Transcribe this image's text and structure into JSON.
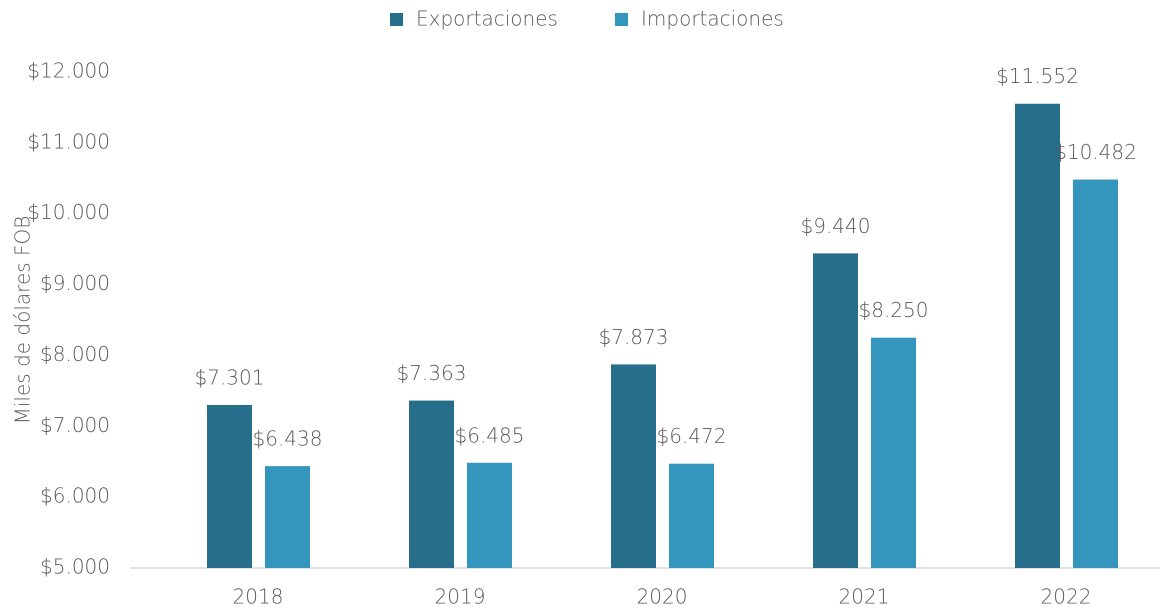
{
  "chart_data": {
    "type": "bar",
    "y_axis_label": "Miles de dólares FOB",
    "categories": [
      "2018",
      "2019",
      "2020",
      "2021",
      "2022"
    ],
    "series": [
      {
        "name": "Exportaciones",
        "color": "#276e8a",
        "values": [
          7301,
          7363,
          7873,
          9440,
          11552
        ],
        "value_labels": [
          "$7.301",
          "$7.363",
          "$7.873",
          "$9.440",
          "$11.552"
        ]
      },
      {
        "name": "Importaciones",
        "color": "#3596bd",
        "values": [
          6438,
          6485,
          6472,
          8250,
          10482
        ],
        "value_labels": [
          "$6.438",
          "$6.485",
          "$6.472",
          "$8.250",
          "$10.482"
        ]
      }
    ],
    "ylim": [
      5000,
      12000
    ],
    "yticks": [
      {
        "value": 5000,
        "label": "$5.000"
      },
      {
        "value": 6000,
        "label": "$6.000"
      },
      {
        "value": 7000,
        "label": "$7.000"
      },
      {
        "value": 8000,
        "label": "$8.000"
      },
      {
        "value": 9000,
        "label": "$9.000"
      },
      {
        "value": 10000,
        "label": "$10.000"
      },
      {
        "value": 11000,
        "label": "$11.000"
      },
      {
        "value": 12000,
        "label": "$12.000"
      }
    ],
    "grid": false,
    "legend": "top"
  }
}
